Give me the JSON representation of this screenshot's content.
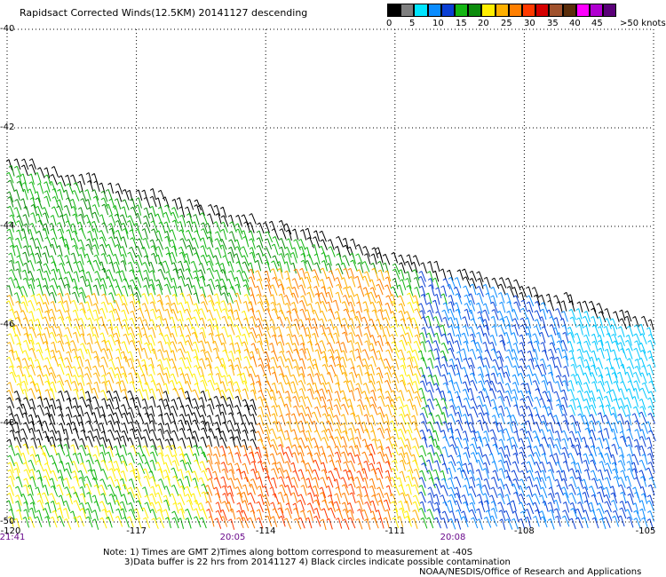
{
  "title": "Rapidsact Corrected Winds(12.5KM) 20141127 descending",
  "legend": {
    "labels": [
      "0",
      "5",
      "10",
      "15",
      "20",
      "25",
      "30",
      "35",
      "40",
      "45",
      ">50 knots"
    ],
    "colors": [
      "#000000",
      "#7f7f7f",
      "#00e5ff",
      "#0a8cff",
      "#0a3fd4",
      "#13b613",
      "#0c8c0c",
      "#ffee00",
      "#ffb000",
      "#ff7f00",
      "#ff3a00",
      "#d40000",
      "#a0522d",
      "#5a2d0a",
      "#ff00ff",
      "#b000d0",
      "#5a0078"
    ]
  },
  "axes": {
    "y_labels": [
      "-40",
      "-42",
      "-44",
      "-46",
      "-48",
      "-50"
    ],
    "x_labels": [
      "-120",
      "-117",
      "-114",
      "-111",
      "-108",
      "-105"
    ]
  },
  "time_labels": [
    "21:41",
    "20:05",
    "20:08"
  ],
  "notes": {
    "line1": "Note: 1) Times are GMT 2)Times along bottom correspond to measurement at -40S",
    "line2": "3)Data buffer is 22 hrs from 20141127 4) Black circles indicate possible contamination",
    "credit": "NOAA/NESDIS/Office of Research and Applications"
  },
  "map_data": {
    "lon_range": [
      -120,
      -105
    ],
    "lat_range": [
      -50,
      -40
    ],
    "grid_spacing": {
      "lon": 3,
      "lat": 2
    },
    "wind_field_regions": [
      {
        "area": "northwest",
        "speed_knots": "15-20",
        "color": "#0c8c0c"
      },
      {
        "area": "west-central",
        "speed_knots": "20-25",
        "color": "#ffee00"
      },
      {
        "area": "center south",
        "speed_knots": "25-35",
        "color": "#ff7f00"
      },
      {
        "area": "east",
        "speed_knots": "5-15",
        "color": "#0a3fd4"
      },
      {
        "area": "west near -48S to -49S",
        "speed_knots": "contaminated",
        "color": "#000000"
      }
    ]
  }
}
